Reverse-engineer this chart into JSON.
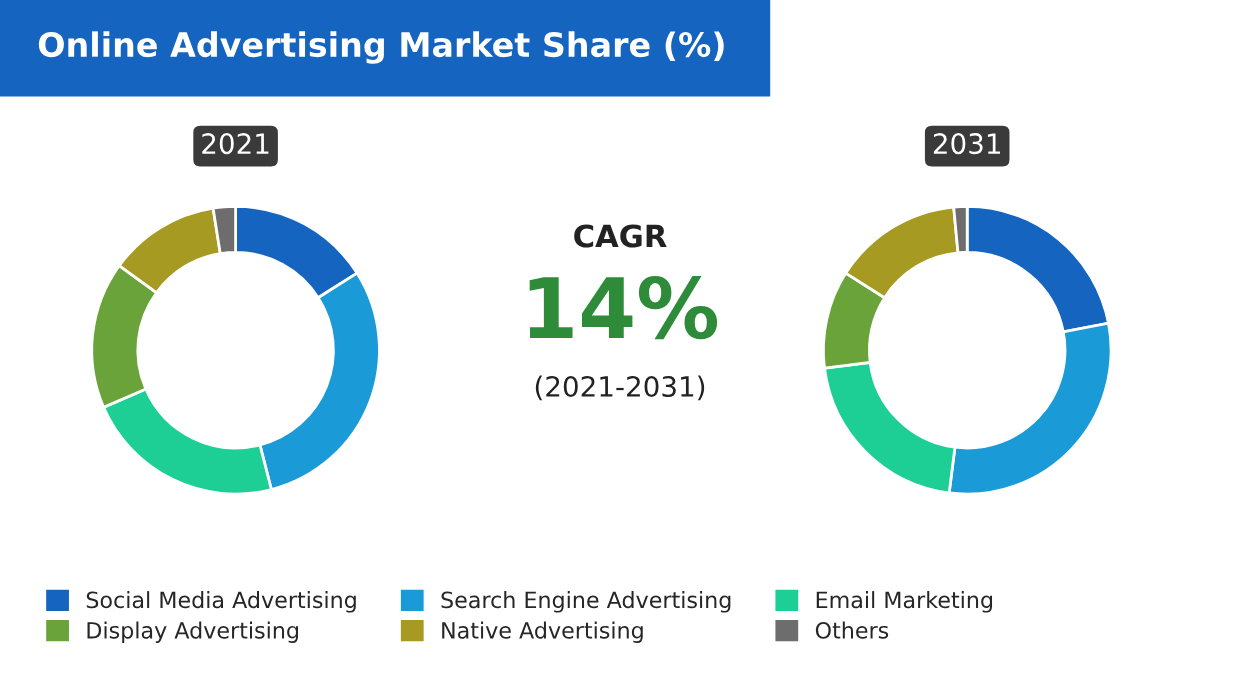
{
  "chart_data": [
    {
      "type": "donut",
      "title": "2021",
      "categories": [
        "Social Media Advertising",
        "Search Engine Advertising",
        "Email Marketing",
        "Display Advertising",
        "Native Advertising",
        "Others"
      ],
      "values": [
        16,
        30,
        22.5,
        16.5,
        12.5,
        2.5
      ],
      "colors": [
        "#1565c0",
        "#1a9ad6",
        "#1ecf95",
        "#6aa33a",
        "#a79a22",
        "#6d6d6d"
      ],
      "legend": "bottom"
    },
    {
      "type": "donut",
      "title": "2031",
      "categories": [
        null,
        null,
        null,
        null,
        null,
        null
      ],
      "values": [
        22,
        30,
        21,
        11,
        14.5,
        1.5
      ],
      "colors": [
        "#1565c0",
        "#1a9ad6",
        "#1ecf95",
        "#6aa33a",
        "#a79a22",
        "#6d6d6d"
      ]
    },
    {
      "type": "other",
      "title": "Online Advertising Market Share (%)",
      "annotations": [
        "CAGR",
        "14%",
        "(2021-2031)"
      ]
    }
  ]
}
